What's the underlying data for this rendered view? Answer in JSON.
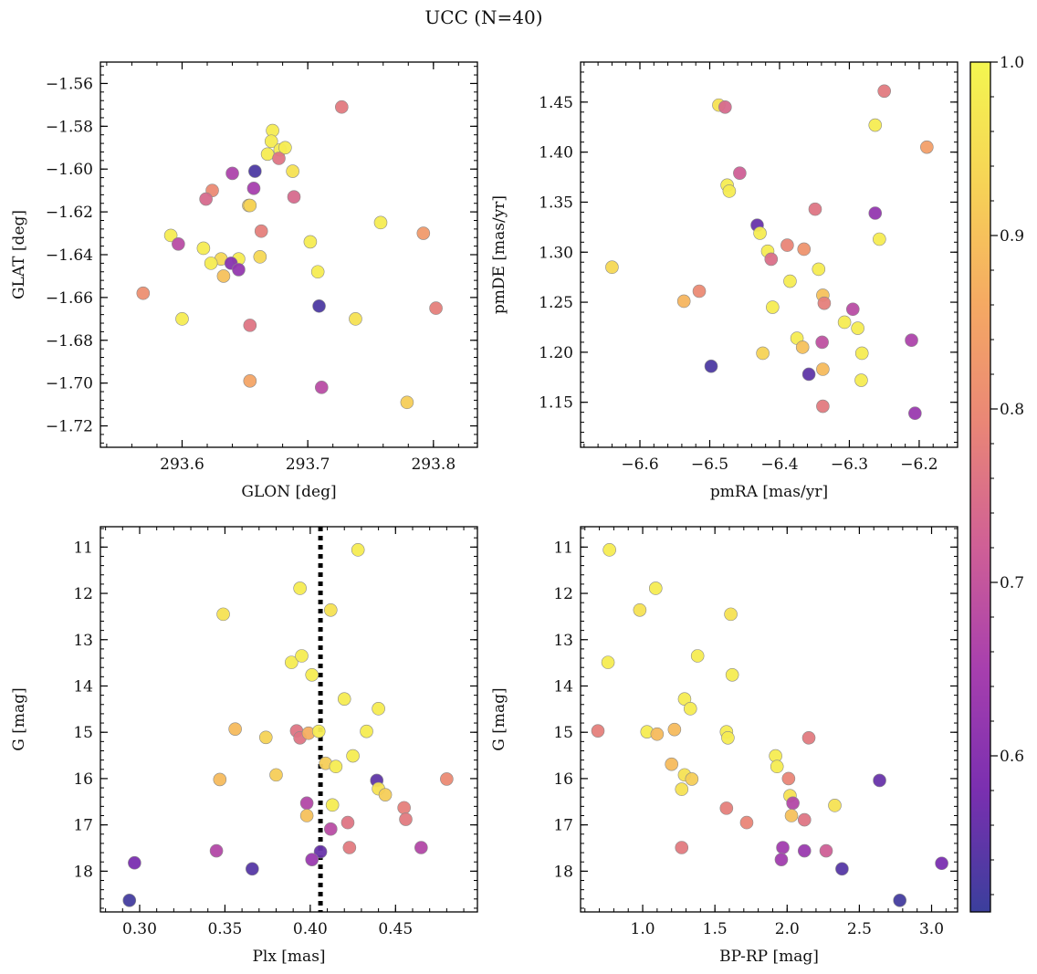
{
  "figure": {
    "title": "UCC (N=40)"
  },
  "colormap": {
    "name": "plasma",
    "stops": [
      "#3b3f9c",
      "#7a2fb0",
      "#a73fae",
      "#cf5f96",
      "#e98577",
      "#f5a963",
      "#f6d356",
      "#f4f650"
    ],
    "range": [
      0.51,
      1.0
    ],
    "ticks": [
      0.6,
      0.7,
      0.8,
      0.9,
      1.0
    ],
    "tick_labels": [
      "0.6",
      "0.7",
      "0.8",
      "0.9",
      "1.0"
    ]
  },
  "chart_data": [
    {
      "type": "scatter",
      "id": "glon-glat",
      "xlabel": "GLON [deg]",
      "ylabel": "GLAT [deg]",
      "xlim": [
        293.535,
        293.835
      ],
      "ylim": [
        -1.73,
        -1.55
      ],
      "xticks": [
        293.6,
        293.7,
        293.8
      ],
      "xtick_labels": [
        "293.6",
        "293.7",
        "293.8"
      ],
      "yticks": [
        -1.56,
        -1.58,
        -1.6,
        -1.62,
        -1.64,
        -1.66,
        -1.68,
        -1.7,
        -1.72
      ],
      "ytick_labels": [
        "−1.56",
        "−1.58",
        "−1.60",
        "−1.62",
        "−1.64",
        "−1.66",
        "−1.68",
        "−1.70",
        "−1.72"
      ],
      "points": [
        {
          "x": 293.727,
          "y": -1.571,
          "c": 0.77
        },
        {
          "x": 293.672,
          "y": -1.582,
          "c": 0.98
        },
        {
          "x": 293.671,
          "y": -1.587,
          "c": 0.98
        },
        {
          "x": 293.678,
          "y": -1.591,
          "c": 0.98
        },
        {
          "x": 293.682,
          "y": -1.59,
          "c": 0.98
        },
        {
          "x": 293.668,
          "y": -1.593,
          "c": 0.98
        },
        {
          "x": 293.677,
          "y": -1.595,
          "c": 0.76
        },
        {
          "x": 293.688,
          "y": -1.601,
          "c": 0.96
        },
        {
          "x": 293.658,
          "y": -1.601,
          "c": 0.53
        },
        {
          "x": 293.64,
          "y": -1.602,
          "c": 0.66
        },
        {
          "x": 293.657,
          "y": -1.609,
          "c": 0.65
        },
        {
          "x": 293.624,
          "y": -1.61,
          "c": 0.8
        },
        {
          "x": 293.619,
          "y": -1.614,
          "c": 0.74
        },
        {
          "x": 293.689,
          "y": -1.613,
          "c": 0.74
        },
        {
          "x": 293.653,
          "y": -1.617,
          "c": 0.92
        },
        {
          "x": 293.654,
          "y": -1.617,
          "c": 0.93
        },
        {
          "x": 293.758,
          "y": -1.625,
          "c": 0.98
        },
        {
          "x": 293.663,
          "y": -1.629,
          "c": 0.78
        },
        {
          "x": 293.591,
          "y": -1.631,
          "c": 0.98
        },
        {
          "x": 293.792,
          "y": -1.63,
          "c": 0.83
        },
        {
          "x": 293.597,
          "y": -1.635,
          "c": 0.68
        },
        {
          "x": 293.702,
          "y": -1.634,
          "c": 0.98
        },
        {
          "x": 293.617,
          "y": -1.637,
          "c": 0.98
        },
        {
          "x": 293.662,
          "y": -1.641,
          "c": 0.94
        },
        {
          "x": 293.631,
          "y": -1.642,
          "c": 0.94
        },
        {
          "x": 293.645,
          "y": -1.642,
          "c": 0.98
        },
        {
          "x": 293.623,
          "y": -1.644,
          "c": 0.98
        },
        {
          "x": 293.639,
          "y": -1.644,
          "c": 0.6
        },
        {
          "x": 293.645,
          "y": -1.647,
          "c": 0.62
        },
        {
          "x": 293.708,
          "y": -1.648,
          "c": 0.98
        },
        {
          "x": 293.633,
          "y": -1.65,
          "c": 0.9
        },
        {
          "x": 293.569,
          "y": -1.658,
          "c": 0.81
        },
        {
          "x": 293.709,
          "y": -1.664,
          "c": 0.53
        },
        {
          "x": 293.802,
          "y": -1.665,
          "c": 0.78
        },
        {
          "x": 293.6,
          "y": -1.67,
          "c": 0.98
        },
        {
          "x": 293.738,
          "y": -1.67,
          "c": 0.96
        },
        {
          "x": 293.654,
          "y": -1.673,
          "c": 0.76
        },
        {
          "x": 293.654,
          "y": -1.699,
          "c": 0.85
        },
        {
          "x": 293.779,
          "y": -1.709,
          "c": 0.92
        },
        {
          "x": 293.711,
          "y": -1.702,
          "c": 0.68
        }
      ]
    },
    {
      "type": "scatter",
      "id": "pmra-pmde",
      "xlabel": "pmRA [mas/yr]",
      "ylabel": "pmDE [mas/yr]",
      "xlim": [
        -6.685,
        -6.145
      ],
      "ylim": [
        1.105,
        1.49
      ],
      "xticks": [
        -6.6,
        -6.5,
        -6.4,
        -6.3,
        -6.2
      ],
      "xtick_labels": [
        "−6.6",
        "−6.5",
        "−6.4",
        "−6.3",
        "−6.2"
      ],
      "yticks": [
        1.15,
        1.2,
        1.25,
        1.3,
        1.35,
        1.4,
        1.45
      ],
      "ytick_labels": [
        "1.15",
        "1.20",
        "1.25",
        "1.30",
        "1.35",
        "1.40",
        "1.45"
      ],
      "points": [
        {
          "x": -6.25,
          "y": 1.461,
          "c": 0.77
        },
        {
          "x": -6.487,
          "y": 1.447,
          "c": 0.96
        },
        {
          "x": -6.478,
          "y": 1.445,
          "c": 0.74
        },
        {
          "x": -6.263,
          "y": 1.427,
          "c": 0.98
        },
        {
          "x": -6.189,
          "y": 1.405,
          "c": 0.84
        },
        {
          "x": -6.457,
          "y": 1.379,
          "c": 0.72
        },
        {
          "x": -6.475,
          "y": 1.367,
          "c": 0.98
        },
        {
          "x": -6.472,
          "y": 1.361,
          "c": 0.98
        },
        {
          "x": -6.349,
          "y": 1.343,
          "c": 0.76
        },
        {
          "x": -6.263,
          "y": 1.339,
          "c": 0.62
        },
        {
          "x": -6.432,
          "y": 1.327,
          "c": 0.56
        },
        {
          "x": -6.428,
          "y": 1.319,
          "c": 0.98
        },
        {
          "x": -6.257,
          "y": 1.313,
          "c": 0.98
        },
        {
          "x": -6.389,
          "y": 1.307,
          "c": 0.79
        },
        {
          "x": -6.365,
          "y": 1.303,
          "c": 0.82
        },
        {
          "x": -6.417,
          "y": 1.301,
          "c": 0.98
        },
        {
          "x": -6.412,
          "y": 1.293,
          "c": 0.75
        },
        {
          "x": -6.64,
          "y": 1.285,
          "c": 0.94
        },
        {
          "x": -6.344,
          "y": 1.283,
          "c": 0.98
        },
        {
          "x": -6.385,
          "y": 1.271,
          "c": 0.98
        },
        {
          "x": -6.515,
          "y": 1.261,
          "c": 0.8
        },
        {
          "x": -6.338,
          "y": 1.257,
          "c": 0.9
        },
        {
          "x": -6.537,
          "y": 1.251,
          "c": 0.88
        },
        {
          "x": -6.336,
          "y": 1.249,
          "c": 0.78
        },
        {
          "x": -6.41,
          "y": 1.245,
          "c": 0.98
        },
        {
          "x": -6.295,
          "y": 1.243,
          "c": 0.68
        },
        {
          "x": -6.307,
          "y": 1.23,
          "c": 0.98
        },
        {
          "x": -6.288,
          "y": 1.224,
          "c": 0.98
        },
        {
          "x": -6.375,
          "y": 1.214,
          "c": 0.98
        },
        {
          "x": -6.211,
          "y": 1.212,
          "c": 0.66
        },
        {
          "x": -6.339,
          "y": 1.21,
          "c": 0.69
        },
        {
          "x": -6.367,
          "y": 1.205,
          "c": 0.9
        },
        {
          "x": -6.424,
          "y": 1.199,
          "c": 0.93
        },
        {
          "x": -6.282,
          "y": 1.199,
          "c": 0.98
        },
        {
          "x": -6.498,
          "y": 1.186,
          "c": 0.53
        },
        {
          "x": -6.338,
          "y": 1.183,
          "c": 0.89
        },
        {
          "x": -6.358,
          "y": 1.178,
          "c": 0.55
        },
        {
          "x": -6.283,
          "y": 1.172,
          "c": 0.98
        },
        {
          "x": -6.338,
          "y": 1.146,
          "c": 0.77
        },
        {
          "x": -6.206,
          "y": 1.139,
          "c": 0.63
        }
      ]
    },
    {
      "type": "scatter",
      "id": "plx-g",
      "xlabel": "Plx [mas]",
      "ylabel": "G [mag]",
      "xlim": [
        0.277,
        0.498
      ],
      "ylim": [
        18.88,
        10.56
      ],
      "xticks": [
        0.3,
        0.35,
        0.4,
        0.45
      ],
      "xtick_labels": [
        "0.30",
        "0.35",
        "0.40",
        "0.45"
      ],
      "yticks": [
        11,
        12,
        13,
        14,
        15,
        16,
        17,
        18
      ],
      "ytick_labels": [
        "11",
        "12",
        "13",
        "14",
        "15",
        "16",
        "17",
        "18"
      ],
      "vline": 0.406,
      "points": [
        {
          "x": 0.428,
          "y": 11.06,
          "c": 0.98
        },
        {
          "x": 0.394,
          "y": 11.89,
          "c": 0.98
        },
        {
          "x": 0.412,
          "y": 12.36,
          "c": 0.96
        },
        {
          "x": 0.349,
          "y": 12.45,
          "c": 0.96
        },
        {
          "x": 0.389,
          "y": 13.49,
          "c": 0.98
        },
        {
          "x": 0.395,
          "y": 13.35,
          "c": 0.98
        },
        {
          "x": 0.401,
          "y": 13.76,
          "c": 0.98
        },
        {
          "x": 0.42,
          "y": 14.28,
          "c": 0.98
        },
        {
          "x": 0.44,
          "y": 14.49,
          "c": 0.98
        },
        {
          "x": 0.356,
          "y": 14.93,
          "c": 0.89
        },
        {
          "x": 0.374,
          "y": 15.11,
          "c": 0.93
        },
        {
          "x": 0.392,
          "y": 14.97,
          "c": 0.76
        },
        {
          "x": 0.394,
          "y": 15.12,
          "c": 0.76
        },
        {
          "x": 0.399,
          "y": 15.02,
          "c": 0.87
        },
        {
          "x": 0.405,
          "y": 14.98,
          "c": 0.98
        },
        {
          "x": 0.433,
          "y": 14.98,
          "c": 0.98
        },
        {
          "x": 0.409,
          "y": 15.67,
          "c": 0.92
        },
        {
          "x": 0.415,
          "y": 15.74,
          "c": 0.98
        },
        {
          "x": 0.425,
          "y": 15.51,
          "c": 0.98
        },
        {
          "x": 0.347,
          "y": 16.02,
          "c": 0.89
        },
        {
          "x": 0.38,
          "y": 15.92,
          "c": 0.92
        },
        {
          "x": 0.439,
          "y": 16.04,
          "c": 0.55
        },
        {
          "x": 0.44,
          "y": 16.22,
          "c": 0.96
        },
        {
          "x": 0.444,
          "y": 16.35,
          "c": 0.92
        },
        {
          "x": 0.48,
          "y": 16.01,
          "c": 0.8
        },
        {
          "x": 0.413,
          "y": 16.57,
          "c": 0.98
        },
        {
          "x": 0.398,
          "y": 16.53,
          "c": 0.67
        },
        {
          "x": 0.455,
          "y": 16.63,
          "c": 0.78
        },
        {
          "x": 0.398,
          "y": 16.8,
          "c": 0.9
        },
        {
          "x": 0.456,
          "y": 16.88,
          "c": 0.77
        },
        {
          "x": 0.422,
          "y": 16.95,
          "c": 0.76
        },
        {
          "x": 0.412,
          "y": 17.09,
          "c": 0.68
        },
        {
          "x": 0.345,
          "y": 17.56,
          "c": 0.67
        },
        {
          "x": 0.406,
          "y": 17.58,
          "c": 0.56
        },
        {
          "x": 0.423,
          "y": 17.49,
          "c": 0.77
        },
        {
          "x": 0.465,
          "y": 17.49,
          "c": 0.67
        },
        {
          "x": 0.401,
          "y": 17.75,
          "c": 0.63
        },
        {
          "x": 0.297,
          "y": 17.82,
          "c": 0.58
        },
        {
          "x": 0.366,
          "y": 17.95,
          "c": 0.54
        },
        {
          "x": 0.294,
          "y": 18.63,
          "c": 0.52
        }
      ]
    },
    {
      "type": "scatter",
      "id": "bprp-g",
      "xlabel": "BP-RP [mag]",
      "ylabel": "G [mag]",
      "xlim": [
        0.57,
        3.18
      ],
      "ylim": [
        18.88,
        10.56
      ],
      "xticks": [
        1.0,
        1.5,
        2.0,
        2.5,
        3.0
      ],
      "xtick_labels": [
        "1.0",
        "1.5",
        "2.0",
        "2.5",
        "3.0"
      ],
      "yticks": [
        11,
        12,
        13,
        14,
        15,
        16,
        17,
        18
      ],
      "ytick_labels": [
        "11",
        "12",
        "13",
        "14",
        "15",
        "16",
        "17",
        "18"
      ],
      "points": [
        {
          "x": 0.77,
          "y": 11.06,
          "c": 0.98
        },
        {
          "x": 1.09,
          "y": 11.89,
          "c": 0.98
        },
        {
          "x": 0.98,
          "y": 12.36,
          "c": 0.96
        },
        {
          "x": 1.61,
          "y": 12.45,
          "c": 0.96
        },
        {
          "x": 0.76,
          "y": 13.49,
          "c": 0.98
        },
        {
          "x": 1.38,
          "y": 13.35,
          "c": 0.98
        },
        {
          "x": 1.62,
          "y": 13.76,
          "c": 0.98
        },
        {
          "x": 1.29,
          "y": 14.28,
          "c": 0.98
        },
        {
          "x": 1.33,
          "y": 14.49,
          "c": 0.98
        },
        {
          "x": 0.69,
          "y": 14.97,
          "c": 0.78
        },
        {
          "x": 1.03,
          "y": 14.99,
          "c": 0.98
        },
        {
          "x": 1.1,
          "y": 15.04,
          "c": 0.89
        },
        {
          "x": 1.22,
          "y": 14.94,
          "c": 0.89
        },
        {
          "x": 1.58,
          "y": 14.99,
          "c": 0.98
        },
        {
          "x": 1.59,
          "y": 15.12,
          "c": 0.98
        },
        {
          "x": 2.15,
          "y": 15.12,
          "c": 0.77
        },
        {
          "x": 1.2,
          "y": 15.69,
          "c": 0.89
        },
        {
          "x": 1.92,
          "y": 15.51,
          "c": 0.98
        },
        {
          "x": 1.93,
          "y": 15.74,
          "c": 0.98
        },
        {
          "x": 1.29,
          "y": 15.92,
          "c": 0.96
        },
        {
          "x": 1.34,
          "y": 16.01,
          "c": 0.92
        },
        {
          "x": 2.01,
          "y": 16.0,
          "c": 0.79
        },
        {
          "x": 2.64,
          "y": 16.04,
          "c": 0.56
        },
        {
          "x": 1.27,
          "y": 16.23,
          "c": 0.96
        },
        {
          "x": 2.02,
          "y": 16.37,
          "c": 0.96
        },
        {
          "x": 2.04,
          "y": 16.53,
          "c": 0.67
        },
        {
          "x": 1.58,
          "y": 16.64,
          "c": 0.78
        },
        {
          "x": 2.33,
          "y": 16.58,
          "c": 0.96
        },
        {
          "x": 2.03,
          "y": 16.8,
          "c": 0.9
        },
        {
          "x": 2.12,
          "y": 16.89,
          "c": 0.76
        },
        {
          "x": 1.72,
          "y": 16.95,
          "c": 0.79
        },
        {
          "x": 1.27,
          "y": 17.49,
          "c": 0.77
        },
        {
          "x": 1.97,
          "y": 17.49,
          "c": 0.64
        },
        {
          "x": 2.12,
          "y": 17.56,
          "c": 0.63
        },
        {
          "x": 2.27,
          "y": 17.56,
          "c": 0.72
        },
        {
          "x": 1.96,
          "y": 17.75,
          "c": 0.64
        },
        {
          "x": 3.07,
          "y": 17.83,
          "c": 0.58
        },
        {
          "x": 2.38,
          "y": 17.95,
          "c": 0.54
        },
        {
          "x": 2.78,
          "y": 18.63,
          "c": 0.52
        }
      ]
    }
  ]
}
